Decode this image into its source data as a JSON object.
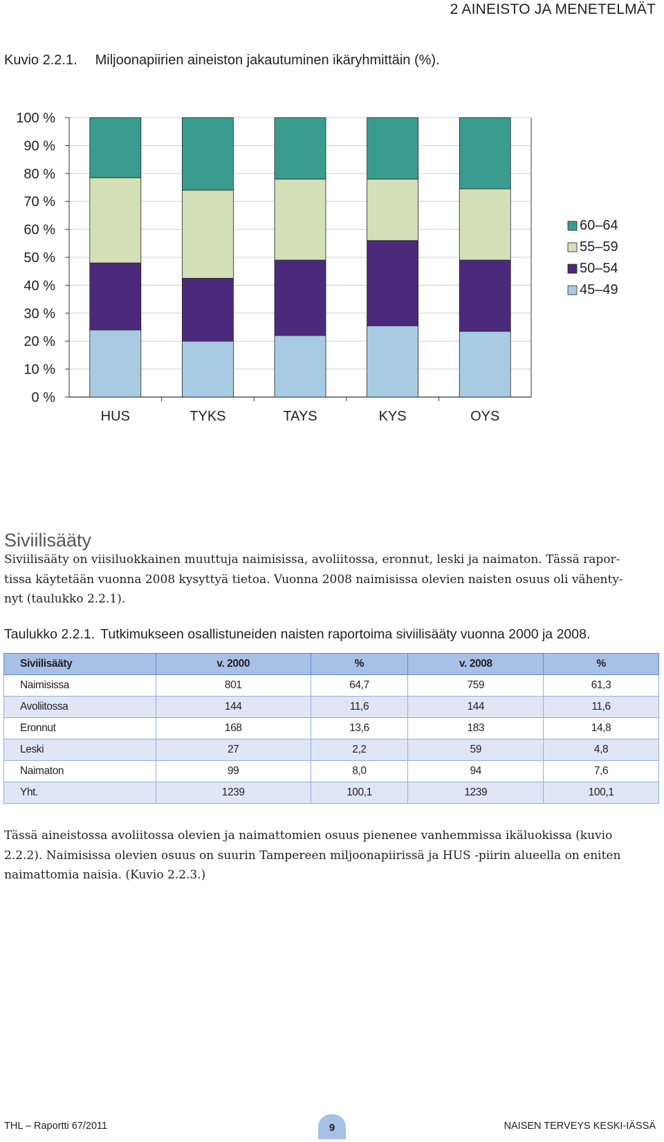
{
  "header": {
    "running_head": "2  AINEISTO JA MENETELMÄT"
  },
  "figure": {
    "number": "Kuvio 2.2.1.",
    "title": "Miljoonapiirien aineiston jakautuminen ikäryhmittäin (%)."
  },
  "chart_data": {
    "type": "bar",
    "stacked": true,
    "categories": [
      "HUS",
      "TYKS",
      "TAYS",
      "KYS",
      "OYS"
    ],
    "series": [
      {
        "name": "45–49",
        "color": "#a8cbe4",
        "values": [
          24,
          20,
          22,
          25.5,
          23.5
        ]
      },
      {
        "name": "50–54",
        "color": "#4b2a7b",
        "values": [
          24,
          22.5,
          27,
          30.5,
          25.5
        ]
      },
      {
        "name": "55–59",
        "color": "#d3e0b8",
        "values": [
          30.5,
          31.5,
          29,
          22,
          25.5
        ]
      },
      {
        "name": "60–64",
        "color": "#3a9c8e",
        "values": [
          21.5,
          26,
          22,
          22,
          25.5
        ]
      }
    ],
    "y_ticks": [
      "0 %",
      "10 %",
      "20 %",
      "30 %",
      "40 %",
      "50 %",
      "60 %",
      "70 %",
      "80 %",
      "90 %",
      "100 %"
    ],
    "ylim": [
      0,
      100
    ],
    "legend_position": "right",
    "grid": true
  },
  "section": {
    "heading": "Siviilisääty",
    "para1_lines": [
      "Siviilisääty on viisiluokkainen muuttuja naimisissa, avoliitossa, eronnut, leski ja naimaton. Tässä rapor-",
      "tissa käytetään vuonna 2008 kysyttyä tietoa. Vuonna 2008 naimisissa olevien naisten osuus oli vähenty-",
      "nyt (taulukko  2.2.1)."
    ]
  },
  "table": {
    "number": "Taulukko 2.2.1.",
    "title": "Tutkimukseen osallistuneiden naisten raportoima siviilisääty vuonna  2000 ja 2008.",
    "headers": [
      "Siviilisääty",
      "v. 2000",
      "%",
      "v. 2008",
      "%"
    ],
    "rows": [
      [
        "Naimisissa",
        "801",
        "64,7",
        "759",
        "61,3"
      ],
      [
        "Avoliitossa",
        "144",
        "11,6",
        "144",
        "11,6"
      ],
      [
        "Eronnut",
        "168",
        "13,6",
        "183",
        "14,8"
      ],
      [
        "Leski",
        "27",
        "2,2",
        "59",
        "4,8"
      ],
      [
        "Naimaton",
        "99",
        "8,0",
        "94",
        "7,6"
      ],
      [
        "Yht.",
        "1239",
        "100,1",
        "1239",
        "100,1"
      ]
    ]
  },
  "para2_lines": [
    "Tässä aineistossa avoliitossa olevien ja naimattomien osuus pienenee vanhemmissa ikäluokissa (kuvio",
    "2.2.2). Naimisissa olevien osuus on suurin Tampereen miljoonapiirissä ja HUS -piirin alueella on eniten",
    "naimattomia naisia. (Kuvio 2.2.3.)"
  ],
  "footer": {
    "left": "THL – Raportti 67/2011",
    "page": "9",
    "right": "NAISEN TERVEYS KESKI-IÄSSÄ"
  }
}
